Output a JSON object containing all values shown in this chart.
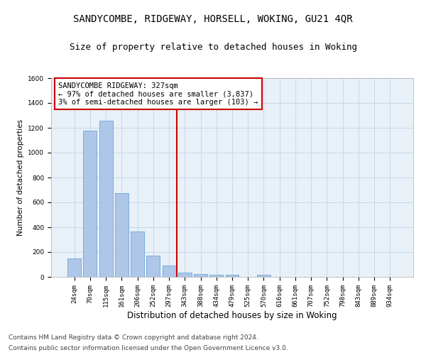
{
  "title": "SANDYCOMBE, RIDGEWAY, HORSELL, WOKING, GU21 4QR",
  "subtitle": "Size of property relative to detached houses in Woking",
  "xlabel": "Distribution of detached houses by size in Woking",
  "ylabel": "Number of detached properties",
  "categories": [
    "24sqm",
    "70sqm",
    "115sqm",
    "161sqm",
    "206sqm",
    "252sqm",
    "297sqm",
    "343sqm",
    "388sqm",
    "434sqm",
    "479sqm",
    "525sqm",
    "570sqm",
    "616sqm",
    "661sqm",
    "707sqm",
    "752sqm",
    "798sqm",
    "843sqm",
    "889sqm",
    "934sqm"
  ],
  "values": [
    150,
    1175,
    1255,
    675,
    365,
    170,
    90,
    35,
    25,
    20,
    20,
    0,
    20,
    0,
    0,
    0,
    0,
    0,
    0,
    0,
    0
  ],
  "bar_color": "#aec6e8",
  "bar_edge_color": "#5b9bd5",
  "property_line_x": 6.5,
  "annotation_text": "SANDYCOMBE RIDGEWAY: 327sqm\n← 97% of detached houses are smaller (3,837)\n3% of semi-detached houses are larger (103) →",
  "annotation_box_color": "#ffffff",
  "annotation_box_edge_color": "#cc0000",
  "vline_color": "#cc0000",
  "ylim": [
    0,
    1600
  ],
  "yticks": [
    0,
    200,
    400,
    600,
    800,
    1000,
    1200,
    1400,
    1600
  ],
  "grid_color": "#c8d8e8",
  "background_color": "#e8f0f8",
  "footer_line1": "Contains HM Land Registry data © Crown copyright and database right 2024.",
  "footer_line2": "Contains public sector information licensed under the Open Government Licence v3.0.",
  "title_fontsize": 10,
  "subtitle_fontsize": 9,
  "xlabel_fontsize": 8.5,
  "ylabel_fontsize": 7.5,
  "tick_fontsize": 6.5,
  "annotation_fontsize": 7.5,
  "footer_fontsize": 6.5
}
